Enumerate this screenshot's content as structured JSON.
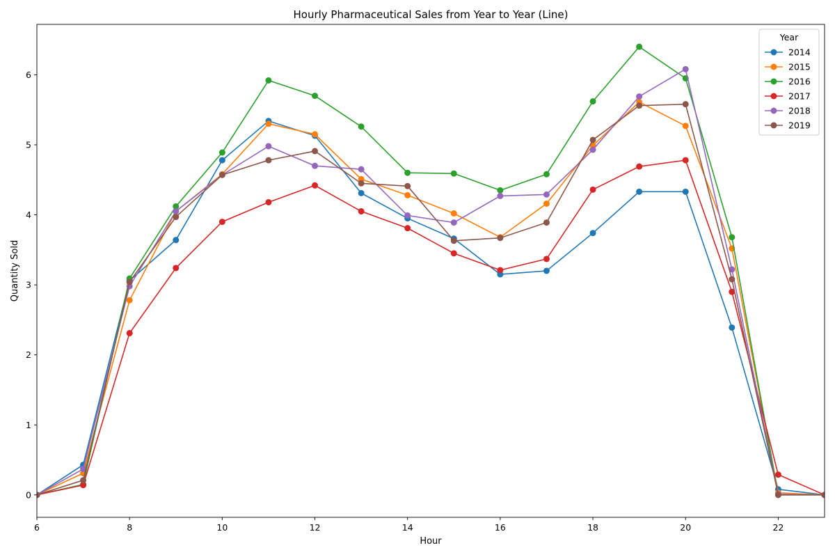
{
  "chart_data": {
    "type": "line",
    "title": "Hourly Pharmaceutical Sales from Year to Year (Line)",
    "xlabel": "Hour",
    "ylabel": "Quantity Sold",
    "xlim": [
      6,
      23
    ],
    "ylim": [
      -0.32,
      6.72
    ],
    "xticks": [
      6,
      8,
      10,
      12,
      14,
      16,
      18,
      20,
      22
    ],
    "yticks": [
      0,
      1,
      2,
      3,
      4,
      5,
      6
    ],
    "grid": false,
    "legend": {
      "title": "Year",
      "placement": "top-right"
    },
    "x": [
      6,
      7,
      8,
      9,
      10,
      11,
      12,
      13,
      14,
      15,
      16,
      17,
      18,
      19,
      20,
      21,
      22,
      23
    ],
    "series": [
      {
        "name": "2014",
        "color": "#1f77b4",
        "values": [
          0.0,
          0.43,
          3.06,
          3.64,
          4.78,
          5.34,
          5.13,
          4.31,
          3.95,
          3.66,
          3.15,
          3.2,
          3.74,
          4.33,
          4.33,
          2.39,
          0.08,
          0.0
        ]
      },
      {
        "name": "2015",
        "color": "#ff7f0e",
        "values": [
          0.0,
          0.31,
          2.78,
          4.05,
          4.58,
          5.3,
          5.15,
          4.51,
          4.28,
          4.02,
          3.68,
          4.16,
          4.99,
          5.61,
          5.27,
          3.52,
          0.03,
          0.0
        ]
      },
      {
        "name": "2016",
        "color": "#2ca02c",
        "values": [
          0.0,
          0.15,
          3.09,
          4.12,
          4.89,
          5.92,
          5.7,
          5.26,
          4.6,
          4.59,
          4.35,
          4.58,
          5.62,
          6.4,
          5.95,
          3.68,
          0.0,
          0.0
        ]
      },
      {
        "name": "2017",
        "color": "#d62728",
        "values": [
          0.0,
          0.14,
          2.31,
          3.24,
          3.9,
          4.18,
          4.42,
          4.05,
          3.81,
          3.45,
          3.21,
          3.37,
          4.36,
          4.69,
          4.78,
          2.9,
          0.29,
          0.0
        ]
      },
      {
        "name": "2018",
        "color": "#9467bd",
        "values": [
          0.0,
          0.37,
          2.98,
          4.05,
          4.57,
          4.98,
          4.7,
          4.65,
          3.99,
          3.89,
          4.27,
          4.29,
          4.93,
          5.69,
          6.08,
          3.22,
          0.01,
          0.0
        ]
      },
      {
        "name": "2019",
        "color": "#8c564b",
        "values": [
          0.0,
          0.21,
          3.04,
          3.97,
          4.57,
          4.78,
          4.91,
          4.45,
          4.41,
          3.63,
          3.67,
          3.89,
          5.07,
          5.56,
          5.58,
          3.08,
          0.0,
          0.0
        ]
      }
    ]
  }
}
